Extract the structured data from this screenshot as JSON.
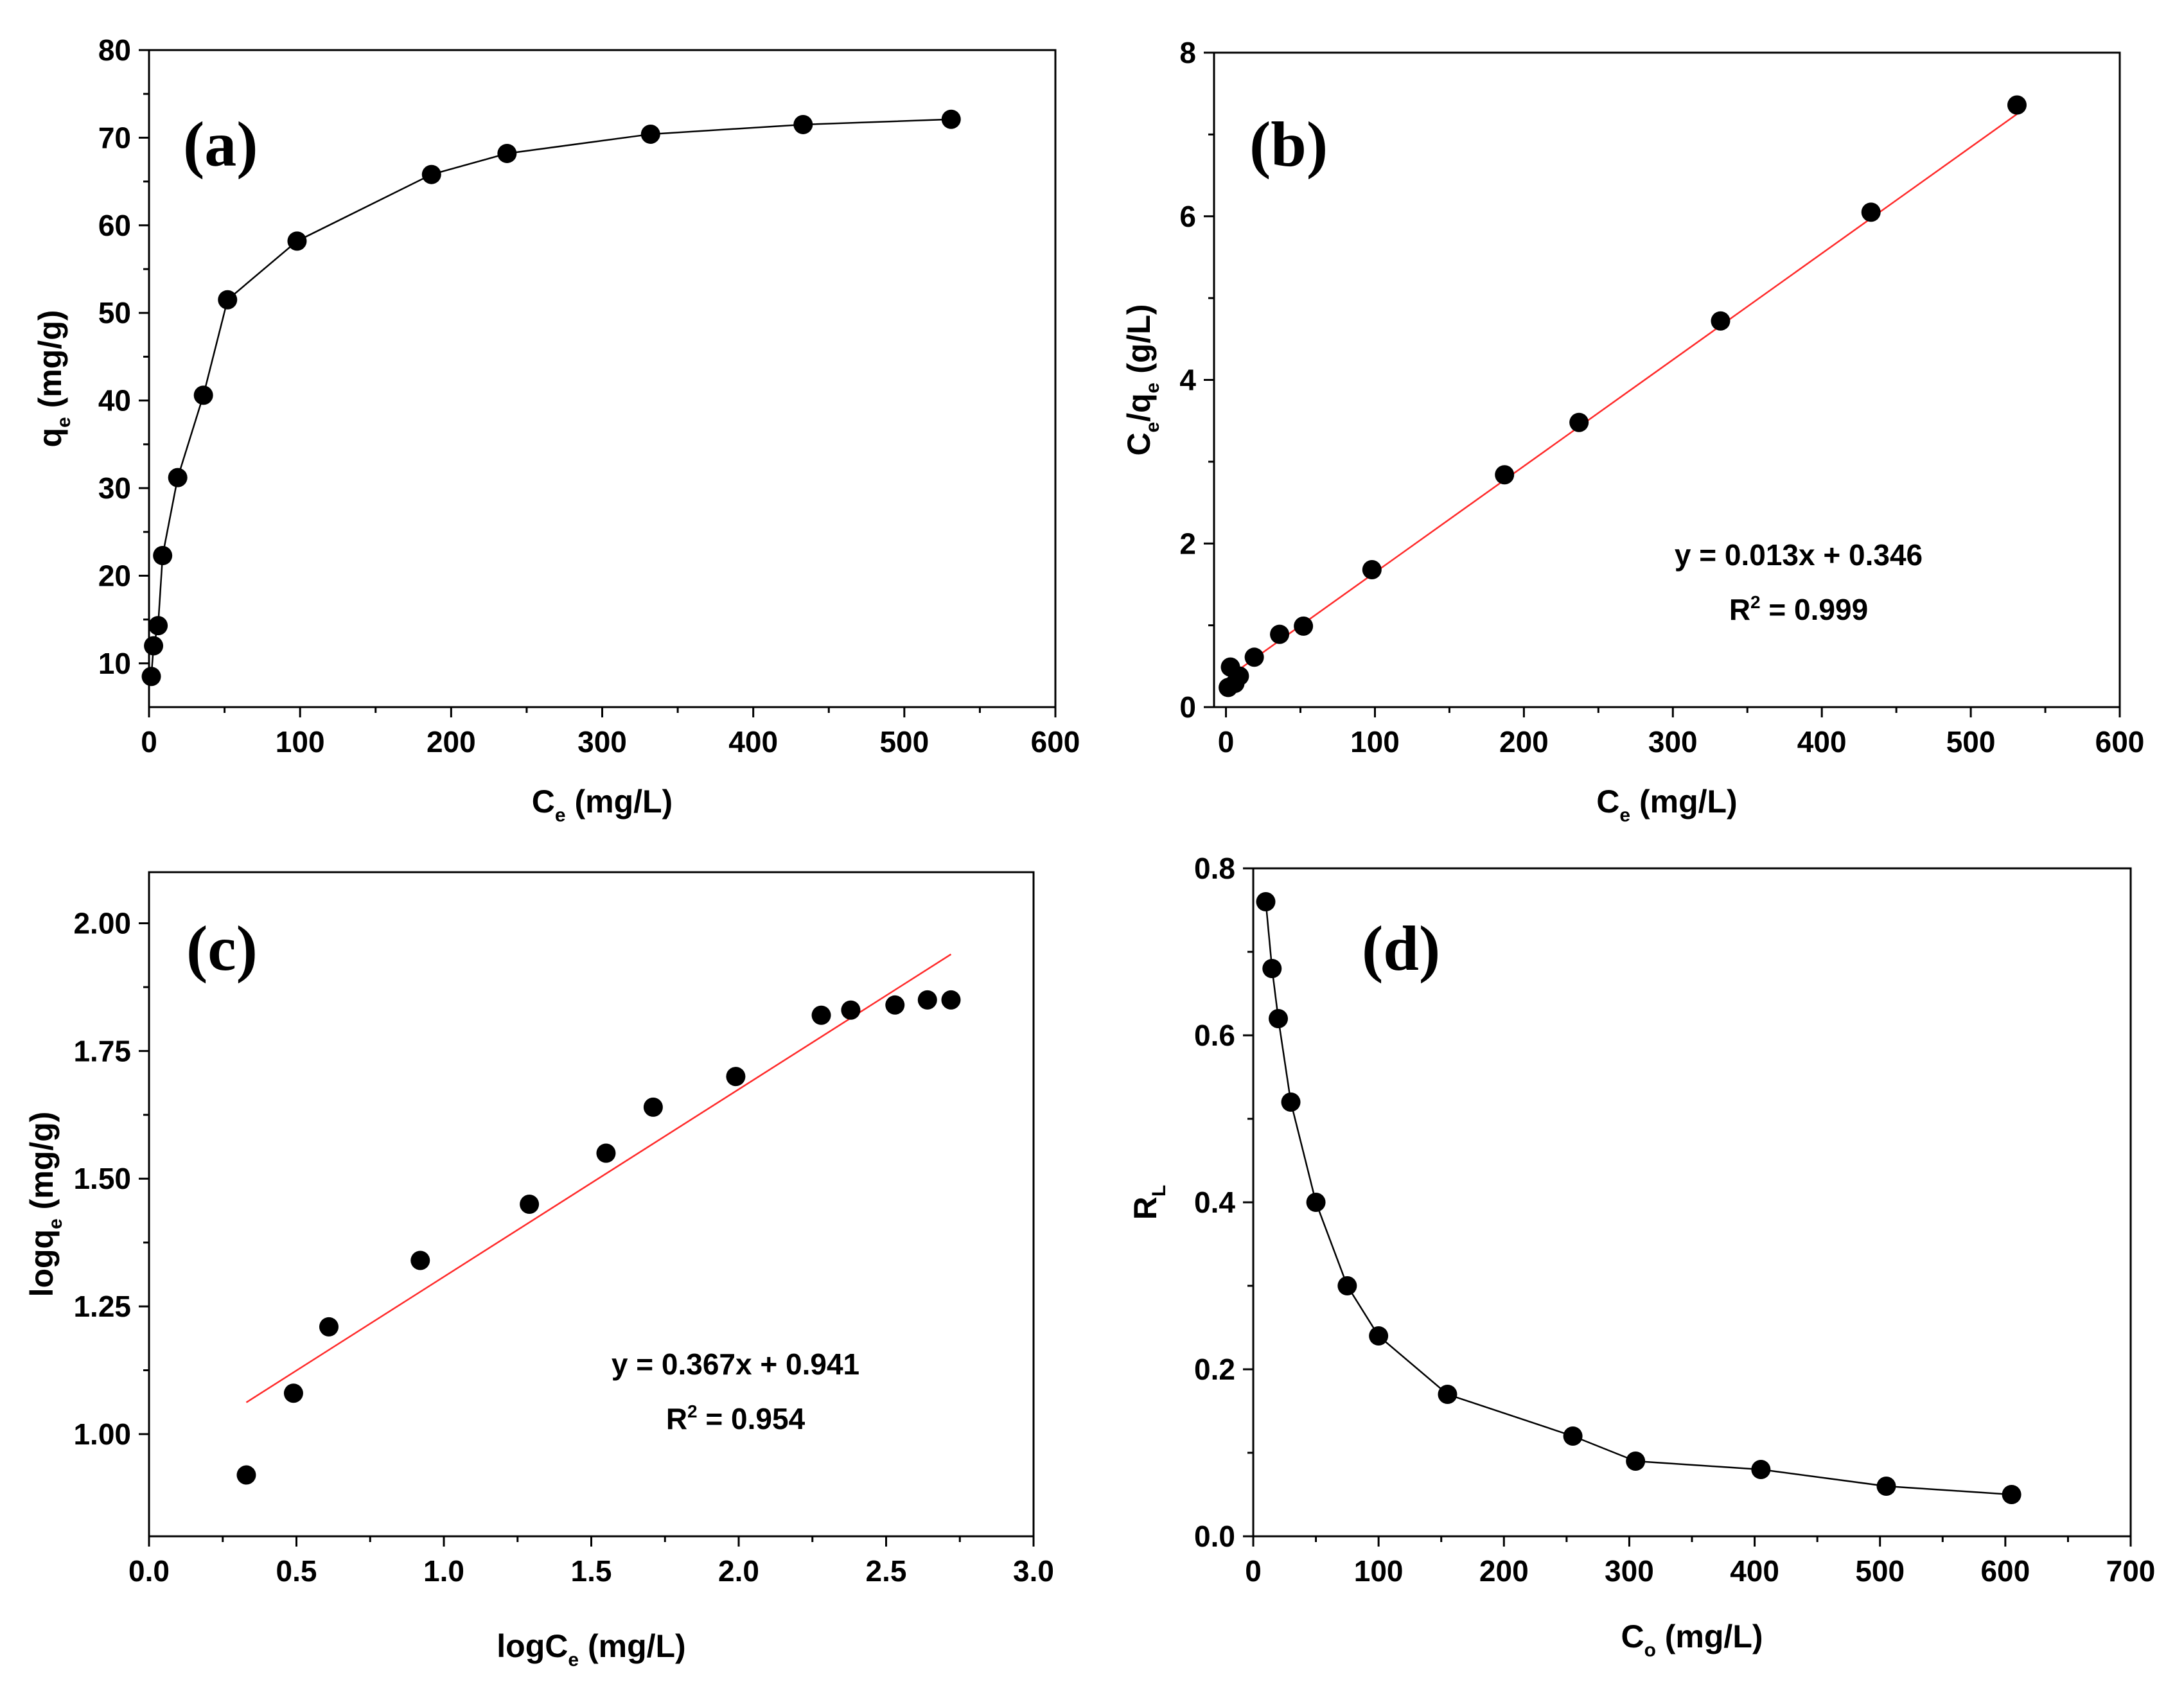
{
  "chart_data": [
    {
      "id": "a",
      "type": "line",
      "panel_label": "(a)",
      "title": "",
      "xlabel": {
        "main": "C",
        "sub": "e",
        "rest": " (mg/L)"
      },
      "ylabel": {
        "main": "q",
        "sub": "e",
        "rest": " (mg/g)"
      },
      "xlim": [
        0,
        600
      ],
      "ylim": [
        5,
        80
      ],
      "xticks": [
        0,
        100,
        200,
        300,
        400,
        500,
        600
      ],
      "xtick_labels": [
        "0",
        "100",
        "200",
        "300",
        "400",
        "500",
        "600"
      ],
      "yticks": [
        10,
        20,
        30,
        40,
        50,
        60,
        70,
        80
      ],
      "ytick_labels": [
        "10",
        "20",
        "30",
        "40",
        "50",
        "60",
        "70",
        "80"
      ],
      "series": [
        {
          "name": "qe",
          "x": [
            1.5,
            3,
            6,
            9,
            19,
            36,
            52,
            98,
            187,
            237,
            332,
            433,
            531
          ],
          "values": [
            8.5,
            12,
            14.3,
            22.3,
            31.2,
            40.6,
            51.5,
            58.2,
            65.8,
            68.2,
            70.4,
            71.5,
            72.1
          ]
        }
      ],
      "fit": null,
      "annotation": null
    },
    {
      "id": "b",
      "type": "scatter",
      "panel_label": "(b)",
      "title": "",
      "xlabel": {
        "main": "C",
        "sub": "e",
        "rest": " (mg/L)"
      },
      "ylabel": {
        "main": "C",
        "sub": "e",
        "mid": "/q",
        "sub2": "e",
        "rest": " (g/L)"
      },
      "xlim": [
        -8,
        600
      ],
      "ylim": [
        0,
        8
      ],
      "xticks": [
        0,
        100,
        200,
        300,
        400,
        500,
        600
      ],
      "xtick_labels": [
        "0",
        "100",
        "200",
        "300",
        "400",
        "500",
        "600"
      ],
      "yticks": [
        0,
        2,
        4,
        6,
        8
      ],
      "ytick_labels": [
        "0",
        "2",
        "4",
        "6",
        "8"
      ],
      "series": [
        {
          "name": "Ce/qe",
          "x": [
            1.5,
            3,
            6,
            9,
            19,
            36,
            52,
            98,
            187,
            237,
            332,
            433,
            531
          ],
          "values": [
            0.24,
            0.49,
            0.29,
            0.38,
            0.61,
            0.89,
            0.99,
            1.68,
            2.84,
            3.48,
            4.72,
            6.05,
            7.36
          ]
        }
      ],
      "fit": {
        "slope": 0.013,
        "intercept": 0.346,
        "x_range": [
          2,
          531
        ]
      },
      "annotation": {
        "equation": "y = 0.013x + 0.346",
        "r2_prefix": "R",
        "r2_sup": "2",
        "r2_value": " = 0.999"
      }
    },
    {
      "id": "c",
      "type": "scatter",
      "panel_label": "(c)",
      "title": "",
      "xlabel": {
        "main": "logC",
        "sub": "e",
        "rest": " (mg/L)"
      },
      "ylabel": {
        "main": "logq",
        "sub": "e",
        "rest": " (mg/g)"
      },
      "xlim": [
        0,
        3
      ],
      "ylim": [
        0.8,
        2.1
      ],
      "xticks": [
        0,
        0.5,
        1,
        1.5,
        2,
        2.5,
        3
      ],
      "xtick_labels": [
        "0.0",
        "0.5",
        "1.0",
        "1.5",
        "2.0",
        "2.5",
        "3.0"
      ],
      "yticks": [
        1,
        1.25,
        1.5,
        1.75,
        2
      ],
      "ytick_labels": [
        "1.00",
        "1.25",
        "1.50",
        "1.75",
        "2.00"
      ],
      "series": [
        {
          "name": "log qe",
          "x": [
            0.33,
            0.49,
            0.61,
            0.92,
            1.29,
            1.55,
            1.71,
            1.99,
            2.28,
            2.38,
            2.53,
            2.64,
            2.72
          ],
          "values": [
            0.92,
            1.08,
            1.21,
            1.34,
            1.45,
            1.55,
            1.64,
            1.7,
            1.82,
            1.83,
            1.84,
            1.85,
            1.85
          ]
        }
      ],
      "fit": {
        "slope": 0.367,
        "intercept": 0.941,
        "x_range": [
          0.33,
          2.72
        ]
      },
      "annotation": {
        "equation": "y = 0.367x + 0.941",
        "r2_prefix": "R",
        "r2_sup": "2",
        "r2_value": " = 0.954"
      }
    },
    {
      "id": "d",
      "type": "line",
      "panel_label": "(d)",
      "title": "",
      "xlabel": {
        "main": "C",
        "sub": "o",
        "rest": " (mg/L)"
      },
      "ylabel": {
        "main": "R",
        "sub": "L",
        "rest": ""
      },
      "xlim": [
        0,
        700
      ],
      "ylim": [
        0,
        0.8
      ],
      "xticks": [
        0,
        100,
        200,
        300,
        400,
        500,
        600,
        700
      ],
      "xtick_labels": [
        "0",
        "100",
        "200",
        "300",
        "400",
        "500",
        "600",
        "700"
      ],
      "yticks": [
        0,
        0.2,
        0.4,
        0.6,
        0.8
      ],
      "ytick_labels": [
        "0.0",
        "0.2",
        "0.4",
        "0.6",
        "0.8"
      ],
      "series": [
        {
          "name": "RL",
          "x": [
            10,
            15,
            20,
            30,
            50,
            75,
            100,
            155,
            255,
            305,
            405,
            505,
            605
          ],
          "values": [
            0.76,
            0.68,
            0.62,
            0.52,
            0.4,
            0.3,
            0.24,
            0.17,
            0.12,
            0.09,
            0.08,
            0.06,
            0.05
          ]
        }
      ],
      "fit": null,
      "annotation": null
    }
  ]
}
